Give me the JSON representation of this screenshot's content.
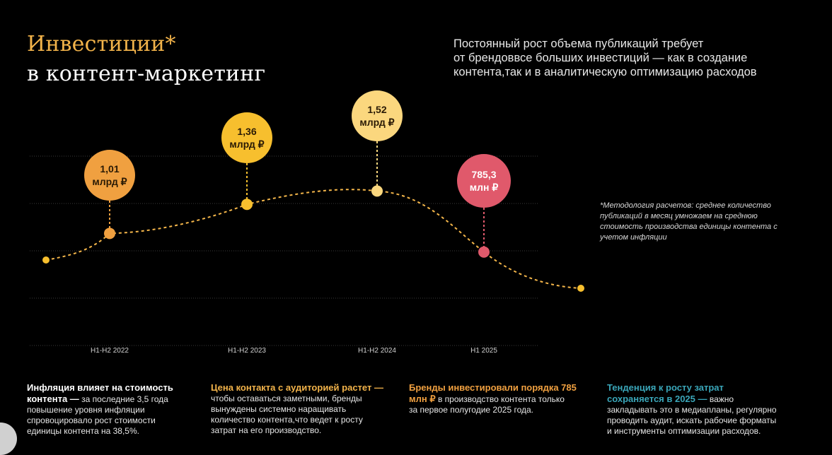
{
  "title": {
    "line1": "Инвестиции*",
    "line2": "в контент-маркетинг"
  },
  "lead": {
    "line1": "Постоянный рост объема публикаций требует",
    "line2": "от брендоввсе больших инвестиций — как в создание",
    "line3": "контента,так и в аналитическую оптимизацию расходов"
  },
  "note": {
    "line1": "*Методология расчетов: среднее количество",
    "line2": "публикаций в месяц умножаем на среднюю",
    "line3": "стоимость производства единицы контента с",
    "line4": "учетом инфляции"
  },
  "chart_data": {
    "type": "line",
    "categories": [
      "H1-H2 2022",
      "H1-H2 2023",
      "H1-H2 2024",
      "H1 2025"
    ],
    "values": [
      1.01,
      1.36,
      1.52,
      0.7853
    ],
    "value_unit": "млрд ₽",
    "labels": [
      {
        "value": "1,01",
        "unit": "млрд ₽",
        "color": "#f0a040"
      },
      {
        "value": "1,36",
        "unit": "млрд ₽",
        "color": "#f7bf2e"
      },
      {
        "value": "1,52",
        "unit": "млрд ₽",
        "color": "#fbd77e"
      },
      {
        "value": "785,3",
        "unit": "млн ₽",
        "color": "#e0596b"
      }
    ],
    "curve_color": "#f4b64a",
    "grid": true,
    "legend": false
  },
  "columns": [
    {
      "heading": [
        "Инфляция влияет на стоимость",
        "контента —"
      ],
      "text": [
        "за последние 3,5 года",
        "повышение уровня инфляции",
        "спровоцировало рост стоимости",
        "единицы контента на 38,5%."
      ]
    },
    {
      "heading": [
        "Цена контакта с аудиторией растет —"
      ],
      "text": [
        "чтобы оставаться заметными, бренды",
        "вынуждены системно наращивать",
        "количество контента,что ведет к росту",
        "затрат на его производство."
      ]
    },
    {
      "heading": [
        "Бренды инвестировали порядка 785",
        "млн ₽"
      ],
      "text": [
        "в производство контента только",
        "за первое полугодие 2025 года."
      ]
    },
    {
      "heading": [
        "Тенденция к росту затрат",
        "сохраняется в 2025 —"
      ],
      "text": [
        "важно",
        "закладывать это в медиапланы, регулярно",
        "проводить аудит, искать рабочие форматы",
        "и инструменты оптимизации расходов."
      ]
    }
  ],
  "colors": {
    "accent": "#f2b34a",
    "teal": "#3aa6b9",
    "background": "#000000"
  }
}
